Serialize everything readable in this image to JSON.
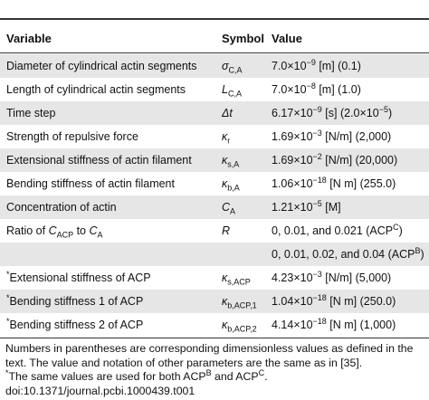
{
  "table": {
    "headers": [
      "Variable",
      "Symbol",
      "Value"
    ],
    "rows": [
      {
        "variable": [
          {
            "t": "Diameter of cylindrical actin segments"
          }
        ],
        "symbol": [
          {
            "i": "σ"
          },
          {
            "sub": "C,A"
          }
        ],
        "value": [
          {
            "t": "7.0×10"
          },
          {
            "sup": "−9"
          },
          {
            "t": " [m] (0.1)"
          }
        ]
      },
      {
        "variable": [
          {
            "t": "Length of cylindrical actin segments"
          }
        ],
        "symbol": [
          {
            "i": "L"
          },
          {
            "sub": "C,A"
          }
        ],
        "value": [
          {
            "t": "7.0×10"
          },
          {
            "sup": "−8"
          },
          {
            "t": " [m] (1.0)"
          }
        ]
      },
      {
        "variable": [
          {
            "t": "Time step"
          }
        ],
        "symbol": [
          {
            "i": "Δt"
          }
        ],
        "value": [
          {
            "t": "6.17×10"
          },
          {
            "sup": "−9"
          },
          {
            "t": " [s] (2.0×10"
          },
          {
            "sup": "−5"
          },
          {
            "t": ")"
          }
        ]
      },
      {
        "variable": [
          {
            "t": "Strength of repulsive force"
          }
        ],
        "symbol": [
          {
            "i": "κ"
          },
          {
            "sub": "r"
          }
        ],
        "value": [
          {
            "t": "1.69×10"
          },
          {
            "sup": "−3"
          },
          {
            "t": " [N/m] (2,000)"
          }
        ]
      },
      {
        "variable": [
          {
            "t": "Extensional stiffness of actin filament"
          }
        ],
        "symbol": [
          {
            "i": "κ"
          },
          {
            "sub": "s,A"
          }
        ],
        "value": [
          {
            "t": "1.69×10"
          },
          {
            "sup": "−2"
          },
          {
            "t": " [N/m] (20,000)"
          }
        ]
      },
      {
        "variable": [
          {
            "t": "Bending stiffness of actin filament"
          }
        ],
        "symbol": [
          {
            "i": "κ"
          },
          {
            "sub": "b,A"
          }
        ],
        "value": [
          {
            "t": "1.06×10"
          },
          {
            "sup": "−18"
          },
          {
            "t": " [N m] (255.0)"
          }
        ]
      },
      {
        "variable": [
          {
            "t": "Concentration of actin"
          }
        ],
        "symbol": [
          {
            "i": "C"
          },
          {
            "sub": "A"
          }
        ],
        "value": [
          {
            "t": "1.21×10"
          },
          {
            "sup": "−5"
          },
          {
            "t": " [M]"
          }
        ]
      },
      {
        "variable": [
          {
            "t": "Ratio of "
          },
          {
            "i": "C"
          },
          {
            "sub": "ACP"
          },
          {
            "t": " to "
          },
          {
            "i": "C"
          },
          {
            "sub": "A"
          }
        ],
        "symbol": [
          {
            "i": "R"
          }
        ],
        "value": [
          {
            "t": "0, 0.01, and 0.021 (ACP"
          },
          {
            "sup": "C"
          },
          {
            "t": ")"
          }
        ]
      },
      {
        "variable": [],
        "symbol": [],
        "value": [
          {
            "t": "0, 0.01, 0.02, and 0.04 (ACP"
          },
          {
            "sup": "B"
          },
          {
            "t": ")"
          }
        ]
      },
      {
        "variable": [
          {
            "sup": "*"
          },
          {
            "t": "Extensional stiffness of ACP"
          }
        ],
        "symbol": [
          {
            "i": "κ"
          },
          {
            "sub": "s,ACP"
          }
        ],
        "value": [
          {
            "t": "4.23×10"
          },
          {
            "sup": "−3"
          },
          {
            "t": " [N/m] (5,000)"
          }
        ]
      },
      {
        "variable": [
          {
            "sup": "*"
          },
          {
            "t": "Bending stiffness 1 of ACP"
          }
        ],
        "symbol": [
          {
            "i": "κ"
          },
          {
            "sub": "b,ACP,1"
          }
        ],
        "value": [
          {
            "t": "1.04×10"
          },
          {
            "sup": "−18"
          },
          {
            "t": " [N m] (250.0)"
          }
        ]
      },
      {
        "variable": [
          {
            "sup": "*"
          },
          {
            "t": "Bending stiffness 2 of ACP"
          }
        ],
        "symbol": [
          {
            "i": "κ"
          },
          {
            "sub": "b,ACP,2"
          }
        ],
        "value": [
          {
            "t": "4.14×10"
          },
          {
            "sup": "−18"
          },
          {
            "t": " [N m] (1,000)"
          }
        ]
      }
    ]
  },
  "notes": [
    [
      {
        "t": "Numbers in parentheses are corresponding dimensionless values as defined in the text. The value and notation of other parameters are the same as in [35]."
      }
    ],
    [
      {
        "sup": "*"
      },
      {
        "t": "The same values are used for both ACP"
      },
      {
        "sup": "B"
      },
      {
        "t": " and ACP"
      },
      {
        "sup": "C"
      },
      {
        "t": "."
      }
    ],
    [
      {
        "t": "doi:10.1371/journal.pcbi.1000439.t001"
      }
    ]
  ]
}
